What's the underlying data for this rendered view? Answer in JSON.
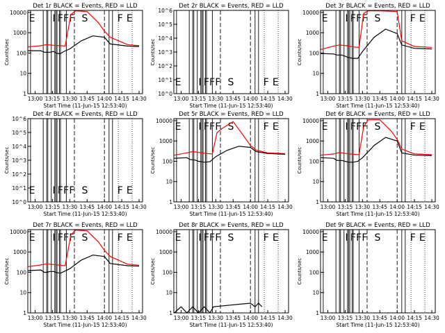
{
  "figure": {
    "xlabel": "Start Time (11-Jun-15 12:53:40)",
    "ylabel": "Counts/sec",
    "xticks": [
      "13:00",
      "13:15",
      "13:30",
      "13:45",
      "14:00",
      "14:15",
      "14:30"
    ],
    "colors": {
      "events": "#000000",
      "lld": "#ff0000"
    }
  },
  "chart_data": [
    {
      "type": "line",
      "title": "Det 1r BLACK = Events, RED = LLD",
      "scale": "log",
      "yticks": [
        "1",
        "10",
        "100",
        "1000",
        "10000"
      ],
      "markers": [
        "E",
        "I",
        "F",
        "F",
        "F",
        "S",
        "F",
        "E"
      ],
      "series": [
        {
          "name": "Events",
          "color": "#000000",
          "x": [
            "12:54",
            "13:05",
            "13:08",
            "13:10",
            "13:13",
            "13:16",
            "13:19",
            "13:22",
            "13:25",
            "13:30",
            "13:40",
            "13:50",
            "14:00",
            "14:05",
            "14:20",
            "14:30"
          ],
          "y": [
            130,
            130,
            110,
            110,
            110,
            120,
            95,
            95,
            120,
            160,
            400,
            700,
            600,
            280,
            220,
            210
          ]
        },
        {
          "name": "LLD",
          "color": "#ff0000",
          "x": [
            "12:54",
            "13:05",
            "13:10",
            "13:16",
            "13:22",
            "13:26",
            "13:31",
            "13:35",
            "13:45",
            "13:55",
            "14:00",
            "14:05",
            "14:20",
            "14:30"
          ],
          "y": [
            200,
            230,
            260,
            240,
            230,
            220,
            8000,
            12000,
            11000,
            3000,
            1200,
            600,
            260,
            230
          ]
        }
      ]
    },
    {
      "type": "line",
      "title": "Det 2r BLACK = Events, RED = LLD",
      "scale": "log",
      "yticks": [
        "10^0",
        "10^1",
        "10^2",
        "10^3",
        "10^4",
        "10^5",
        "10^6"
      ],
      "markers": [
        "E",
        "I",
        "F",
        "F",
        "F",
        "S",
        "F",
        "E"
      ],
      "series": []
    },
    {
      "type": "line",
      "title": "Det 3r BLACK = Events, RED = LLD",
      "scale": "log",
      "yticks": [
        "1",
        "10",
        "100",
        "1000",
        "10000"
      ],
      "markers": [
        "E",
        "I",
        "F",
        "F",
        "F",
        "S",
        "F",
        "E"
      ],
      "series": [
        {
          "name": "Events",
          "color": "#000000",
          "x": [
            "12:54",
            "13:05",
            "13:08",
            "13:12",
            "13:15",
            "13:18",
            "13:22",
            "13:26",
            "13:30",
            "13:40",
            "13:50",
            "14:00",
            "14:04",
            "14:15",
            "14:30"
          ],
          "y": [
            95,
            90,
            80,
            80,
            70,
            60,
            55,
            55,
            120,
            600,
            1500,
            900,
            250,
            170,
            160
          ]
        },
        {
          "name": "LLD",
          "color": "#ff0000",
          "x": [
            "12:54",
            "13:05",
            "13:10",
            "13:16",
            "13:22",
            "13:27",
            "13:31",
            "13:35",
            "13:45",
            "14:00",
            "14:04",
            "14:15",
            "14:30"
          ],
          "y": [
            150,
            220,
            250,
            230,
            200,
            190,
            9000,
            12000,
            12000,
            11000,
            400,
            210,
            190
          ]
        }
      ]
    },
    {
      "type": "line",
      "title": "Det 4r BLACK = Events, RED = LLD",
      "scale": "log",
      "yticks": [
        "10^0",
        "10^1",
        "10^2",
        "10^3",
        "10^4",
        "10^5",
        "10^6"
      ],
      "markers": [
        "E",
        "I",
        "F",
        "F",
        "F",
        "S",
        "F",
        "E"
      ],
      "series": []
    },
    {
      "type": "line",
      "title": "Det 5r BLACK = Events, RED = LLD",
      "scale": "log",
      "yticks": [
        "1",
        "10",
        "100",
        "1000",
        "10000"
      ],
      "markers": [
        "E",
        "I",
        "F",
        "F",
        "F",
        "S",
        "F",
        "E"
      ],
      "series": [
        {
          "name": "Events",
          "color": "#000000",
          "x": [
            "12:54",
            "13:05",
            "13:08",
            "13:12",
            "13:15",
            "13:20",
            "13:25",
            "13:30",
            "13:40",
            "13:50",
            "14:00",
            "14:05",
            "14:15",
            "14:30"
          ],
          "y": [
            140,
            150,
            120,
            115,
            100,
            90,
            95,
            170,
            350,
            550,
            480,
            300,
            240,
            220
          ]
        },
        {
          "name": "LLD",
          "color": "#ff0000",
          "x": [
            "12:54",
            "13:05",
            "13:10",
            "13:16",
            "13:22",
            "13:27",
            "13:31",
            "13:35",
            "13:45",
            "13:55",
            "14:00",
            "14:05",
            "14:15",
            "14:30"
          ],
          "y": [
            200,
            260,
            300,
            270,
            240,
            230,
            2500,
            4000,
            9000,
            1500,
            600,
            350,
            260,
            240
          ]
        }
      ]
    },
    {
      "type": "line",
      "title": "Det 6r BLACK = Events, RED = LLD",
      "scale": "log",
      "yticks": [
        "1",
        "10",
        "100",
        "1000",
        "10000"
      ],
      "markers": [
        "E",
        "I",
        "F",
        "F",
        "F",
        "S",
        "F",
        "E"
      ],
      "series": [
        {
          "name": "Events",
          "color": "#000000",
          "x": [
            "12:54",
            "13:05",
            "13:08",
            "13:12",
            "13:15",
            "13:18",
            "13:22",
            "13:26",
            "13:30",
            "13:40",
            "13:50",
            "14:00",
            "14:04",
            "14:15",
            "14:30"
          ],
          "y": [
            150,
            140,
            110,
            110,
            100,
            90,
            90,
            100,
            150,
            600,
            1500,
            1000,
            260,
            200,
            190
          ]
        },
        {
          "name": "LLD",
          "color": "#ff0000",
          "x": [
            "12:54",
            "13:05",
            "13:10",
            "13:16",
            "13:22",
            "13:27",
            "13:31",
            "13:35",
            "13:45",
            "13:55",
            "14:00",
            "14:04",
            "14:15",
            "14:30"
          ],
          "y": [
            200,
            230,
            270,
            240,
            220,
            210,
            5000,
            11000,
            11000,
            3000,
            1200,
            400,
            230,
            210
          ]
        }
      ]
    },
    {
      "type": "line",
      "title": "Det 7r BLACK = Events, RED = LLD",
      "scale": "log",
      "yticks": [
        "1",
        "10",
        "100",
        "1000",
        "10000"
      ],
      "markers": [
        "E",
        "I",
        "F",
        "F",
        "F",
        "S",
        "F",
        "E"
      ],
      "series": [
        {
          "name": "Events",
          "color": "#000000",
          "x": [
            "12:54",
            "13:05",
            "13:08",
            "13:10",
            "13:13",
            "13:16",
            "13:19",
            "13:22",
            "13:25",
            "13:30",
            "13:40",
            "13:50",
            "14:00",
            "14:05",
            "14:20",
            "14:30"
          ],
          "y": [
            120,
            130,
            100,
            100,
            110,
            110,
            95,
            90,
            110,
            150,
            400,
            700,
            600,
            270,
            210,
            200
          ]
        },
        {
          "name": "LLD",
          "color": "#ff0000",
          "x": [
            "12:54",
            "13:05",
            "13:10",
            "13:16",
            "13:22",
            "13:26",
            "13:31",
            "13:35",
            "13:45",
            "13:55",
            "14:00",
            "14:05",
            "14:20",
            "14:30"
          ],
          "y": [
            190,
            230,
            260,
            240,
            220,
            210,
            7000,
            12000,
            11000,
            3000,
            1200,
            600,
            250,
            220
          ]
        }
      ]
    },
    {
      "type": "line",
      "title": "Det 8r BLACK = Events, RED = LLD",
      "scale": "log",
      "yticks": [
        "1",
        "10",
        "100",
        "1000",
        "10000"
      ],
      "markers": [
        "E",
        "I",
        "F",
        "F",
        "F",
        "S",
        "F",
        "E"
      ],
      "series": [
        {
          "name": "Events",
          "color": "#000000",
          "x": [
            "12:54",
            "13:00",
            "13:05",
            "13:10",
            "13:15",
            "13:20",
            "13:25",
            "13:28",
            "14:00",
            "14:04",
            "14:07",
            "14:10"
          ],
          "y": [
            1,
            2,
            1,
            2,
            1,
            2,
            1,
            2,
            3,
            2,
            3,
            2
          ]
        }
      ]
    },
    {
      "type": "line",
      "title": "Det 9r BLACK = Events, RED = LLD",
      "scale": "log",
      "yticks": [
        "1",
        "10",
        "100",
        "1000",
        "10000"
      ],
      "markers": [
        "E",
        "I",
        "F",
        "F",
        "F",
        "S",
        "F",
        "E"
      ],
      "series": []
    }
  ]
}
